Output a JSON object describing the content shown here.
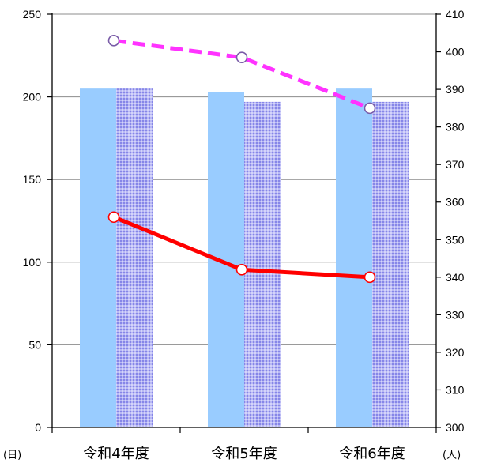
{
  "chart_data": {
    "type": "bar",
    "categories": [
      "令和4年度",
      "令和5年度",
      "令和6年度"
    ],
    "left_axis": {
      "unit": "(日)",
      "ylim": [
        0,
        250
      ],
      "ticks": [
        0,
        50,
        100,
        150,
        200,
        250
      ]
    },
    "right_axis": {
      "unit": "(人)",
      "ylim": [
        300,
        410
      ],
      "ticks": [
        300,
        310,
        320,
        330,
        340,
        350,
        360,
        370,
        380,
        390,
        400,
        410
      ]
    },
    "series": [
      {
        "type": "bar",
        "axis": "left",
        "style": "solid",
        "color": "#99ccff",
        "values": [
          205,
          203,
          205
        ]
      },
      {
        "type": "bar",
        "axis": "left",
        "style": "pattern",
        "color": "#9999ff",
        "values": [
          205,
          197,
          197
        ]
      },
      {
        "type": "line",
        "axis": "right",
        "style": "solid",
        "color": "#ff0000",
        "values": [
          356,
          342,
          340
        ]
      },
      {
        "type": "line",
        "axis": "right",
        "style": "dashed",
        "color": "#ff33ff",
        "marker_color": "#7a5ca8",
        "values": [
          403,
          398.5,
          385
        ]
      }
    ],
    "grid": true,
    "legend": "none"
  }
}
